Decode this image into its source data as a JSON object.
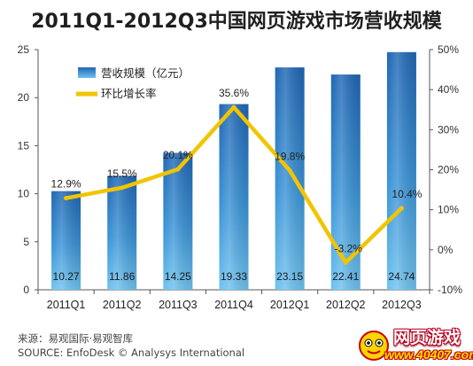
{
  "chart_data": {
    "type": "bar",
    "title": "2011Q1-2012Q3中国网页游戏市场营收规模",
    "categories": [
      "2011Q1",
      "2011Q2",
      "2011Q3",
      "2011Q4",
      "2012Q1",
      "2012Q2",
      "2012Q3"
    ],
    "series": [
      {
        "name": "营收规模（亿元）",
        "type": "bar",
        "axis": "left",
        "values": [
          10.27,
          11.86,
          14.25,
          19.33,
          23.15,
          22.41,
          24.74
        ],
        "labels": [
          "10.27",
          "11.86",
          "14.25",
          "19.33",
          "23.15",
          "22.41",
          "24.74"
        ],
        "color": "#2a7fc8"
      },
      {
        "name": "环比增长率",
        "type": "line",
        "axis": "right",
        "values": [
          12.9,
          15.5,
          20.1,
          35.6,
          19.8,
          -3.2,
          10.4
        ],
        "labels": [
          "12.9%",
          "15.5%",
          "20.1%",
          "35.6%",
          "19.8%",
          "-3.2%",
          "10.4%"
        ],
        "color": "#f2c400"
      }
    ],
    "y_left": {
      "min": 0,
      "max": 25,
      "ticks": [
        "0",
        "5",
        "10",
        "15",
        "20",
        "25"
      ]
    },
    "y_right": {
      "min": -10,
      "max": 50,
      "ticks": [
        "-10%",
        "0%",
        "10%",
        "20%",
        "30%",
        "40%",
        "50%"
      ]
    },
    "grid": false,
    "legend_position": "top-left"
  },
  "footnotes": {
    "source_cn": "来源：易观国际·易观智库",
    "source_en": "SOURCE: EnfoDesk © Analysys International"
  },
  "watermark": {
    "title": "网页游戏",
    "url": "www.40407.com"
  }
}
